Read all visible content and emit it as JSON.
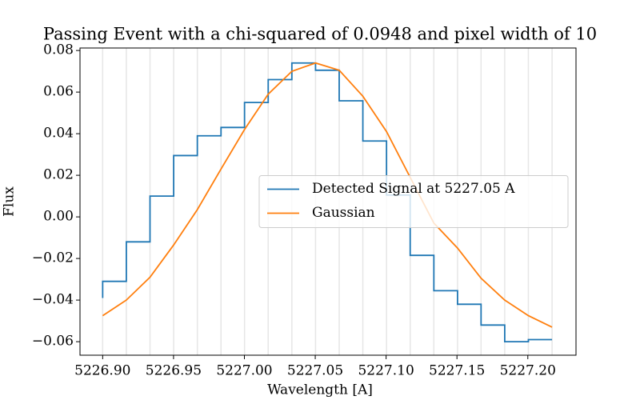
{
  "chart_data": {
    "type": "step_line",
    "title": "Passing Event with a chi-squared of 0.0948 and pixel width of 10",
    "x_label": "Wavelength [A]",
    "y_label": "Flux",
    "x": [
      5226.9,
      5226.9167,
      5226.9334,
      5226.9501,
      5226.9668,
      5226.9835,
      5227.0001,
      5227.0168,
      5227.0335,
      5227.0502,
      5227.0669,
      5227.0836,
      5227.1003,
      5227.117,
      5227.1337,
      5227.1504,
      5227.167,
      5227.1837,
      5227.2004,
      5227.2171
    ],
    "series": [
      {
        "name": "Detected Signal at 5227.05 A",
        "color": "#1f77b4",
        "drawstyle": "steps-pre",
        "values": [
          -0.039,
          -0.031,
          -0.012,
          0.01,
          0.0295,
          0.039,
          0.043,
          0.055,
          0.066,
          0.074,
          0.0705,
          0.0558,
          0.0365,
          0.0105,
          -0.0185,
          -0.0355,
          -0.042,
          -0.052,
          -0.06,
          -0.059
        ]
      },
      {
        "name": "Gaussian",
        "color": "#ff7f0e",
        "drawstyle": "default",
        "values": [
          -0.0475,
          -0.04,
          -0.029,
          -0.0135,
          0.0035,
          0.023,
          0.042,
          0.059,
          0.07,
          0.074,
          0.0705,
          0.058,
          0.041,
          0.019,
          -0.003,
          -0.015,
          -0.0295,
          -0.04,
          -0.0475,
          -0.053
        ]
      }
    ],
    "pixel_lines": true,
    "xlim": [
      5226.884,
      5227.234
    ],
    "xticks": [
      {
        "value": 5226.9,
        "label": "5226.90"
      },
      5226.95,
      {
        "value": 5227.0,
        "label": "5227.00"
      },
      5227.05,
      {
        "value": 5227.1,
        "label": "5227.10"
      },
      5227.15,
      {
        "value": 5227.2,
        "label": "5227.20"
      }
    ],
    "ylim": [
      -0.0665,
      0.0812
    ],
    "yticks": [
      {
        "value": -0.06,
        "label": "−0.06"
      },
      {
        "value": -0.04,
        "label": "−0.04"
      },
      {
        "value": -0.02,
        "label": "−0.02"
      },
      {
        "value": 0,
        "label": "0.00"
      },
      0.02,
      0.04,
      0.06,
      0.08
    ],
    "legend": "center right"
  }
}
